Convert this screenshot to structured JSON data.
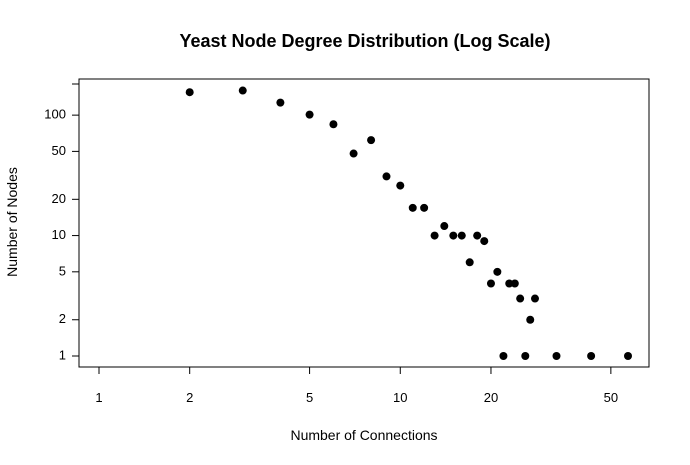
{
  "chart_data": {
    "type": "scatter",
    "title": "Yeast Node Degree Distribution (Log Scale)",
    "xlabel": "Number of Connections",
    "ylabel": "Number of Nodes",
    "xscale": "log",
    "yscale": "log",
    "xlim": [
      1,
      57
    ],
    "ylim": [
      1,
      168
    ],
    "x_ticks": [
      1,
      2,
      5,
      10,
      20,
      50
    ],
    "y_ticks": [
      1,
      2,
      5,
      10,
      20,
      50,
      100
    ],
    "grid": false,
    "legend": "none",
    "point_color": "#000000",
    "points": [
      {
        "x": 2,
        "y": 155
      },
      {
        "x": 3,
        "y": 160
      },
      {
        "x": 4,
        "y": 127
      },
      {
        "x": 5,
        "y": 101
      },
      {
        "x": 6,
        "y": 84
      },
      {
        "x": 7,
        "y": 48
      },
      {
        "x": 8,
        "y": 62
      },
      {
        "x": 9,
        "y": 31
      },
      {
        "x": 10,
        "y": 26
      },
      {
        "x": 11,
        "y": 17
      },
      {
        "x": 12,
        "y": 17
      },
      {
        "x": 13,
        "y": 10
      },
      {
        "x": 14,
        "y": 12
      },
      {
        "x": 15,
        "y": 10
      },
      {
        "x": 16,
        "y": 10
      },
      {
        "x": 17,
        "y": 6
      },
      {
        "x": 18,
        "y": 10
      },
      {
        "x": 19,
        "y": 9
      },
      {
        "x": 20,
        "y": 4
      },
      {
        "x": 21,
        "y": 5
      },
      {
        "x": 22,
        "y": 1
      },
      {
        "x": 23,
        "y": 4
      },
      {
        "x": 24,
        "y": 4
      },
      {
        "x": 25,
        "y": 3
      },
      {
        "x": 26,
        "y": 1
      },
      {
        "x": 27,
        "y": 2
      },
      {
        "x": 28,
        "y": 3
      },
      {
        "x": 33,
        "y": 1
      },
      {
        "x": 43,
        "y": 1
      },
      {
        "x": 57,
        "y": 1
      }
    ]
  }
}
